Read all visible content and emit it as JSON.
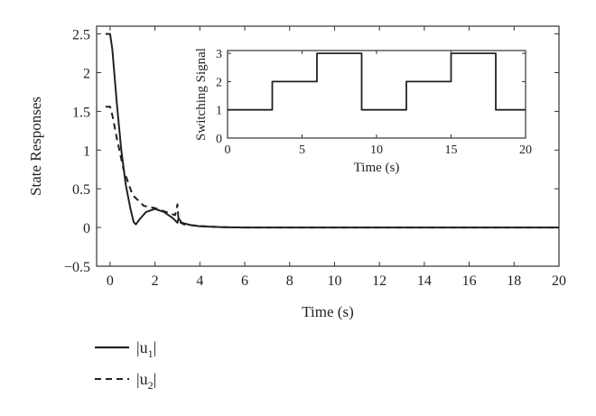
{
  "chart_data": [
    {
      "type": "line",
      "xlabel": "Time (s)",
      "ylabel": "State Responses",
      "xlim": [
        -0.6,
        20
      ],
      "ylim": [
        -0.5,
        2.6
      ],
      "xticks": [
        0,
        2,
        4,
        6,
        8,
        10,
        12,
        14,
        16,
        18,
        20
      ],
      "yticks": [
        -0.5,
        0,
        0.5,
        1,
        1.5,
        2,
        2.5
      ],
      "xtick_labels": [
        "0",
        "2",
        "4",
        "6",
        "8",
        "10",
        "12",
        "14",
        "16",
        "18",
        "20"
      ],
      "ytick_labels": [
        "−0.5",
        "0",
        "0.5",
        "1",
        "1.5",
        "2",
        "2.5"
      ],
      "legend_position": "below-left",
      "series": [
        {
          "name_parts": [
            "|u",
            "1",
            "|"
          ],
          "style": "solid",
          "x": [
            -0.2,
            0,
            0.1,
            0.3,
            0.5,
            0.7,
            0.9,
            1.05,
            1.15,
            1.3,
            1.6,
            2.0,
            2.4,
            2.8,
            3.0,
            3.05,
            3.2,
            3.6,
            4.0,
            5.0,
            6.0,
            8.0,
            20.0
          ],
          "y": [
            2.5,
            2.5,
            2.3,
            1.6,
            1.0,
            0.55,
            0.25,
            0.07,
            0.04,
            0.1,
            0.2,
            0.24,
            0.2,
            0.12,
            0.06,
            0.12,
            0.06,
            0.03,
            0.015,
            0.005,
            0.0,
            0.0,
            0.0
          ]
        },
        {
          "name_parts": [
            "|u",
            "2",
            "|"
          ],
          "style": "dashed",
          "x": [
            -0.2,
            0,
            0.1,
            0.3,
            0.6,
            1.0,
            1.5,
            2.0,
            2.5,
            2.9,
            3.0,
            3.05,
            3.15,
            3.3,
            3.6,
            4.0,
            5.0,
            6.0,
            8.0,
            20.0
          ],
          "y": [
            1.56,
            1.56,
            1.45,
            1.15,
            0.75,
            0.42,
            0.28,
            0.25,
            0.2,
            0.16,
            0.3,
            0.1,
            0.06,
            0.04,
            0.03,
            0.02,
            0.005,
            0.0,
            0.0,
            0.0
          ]
        }
      ]
    },
    {
      "type": "line",
      "xlabel": "Time (s)",
      "ylabel": "Switching Signal",
      "xlim": [
        0,
        20
      ],
      "ylim": [
        0,
        3.1
      ],
      "xticks": [
        0,
        5,
        10,
        15,
        20
      ],
      "yticks": [
        0,
        1,
        2,
        3
      ],
      "xtick_labels": [
        "0",
        "5",
        "10",
        "15",
        "20"
      ],
      "ytick_labels": [
        "0",
        "1",
        "2",
        "3"
      ],
      "series": [
        {
          "style": "step",
          "x": [
            0,
            3,
            3,
            6,
            6,
            9,
            9,
            12,
            12,
            15,
            15,
            18,
            18,
            20
          ],
          "y": [
            1,
            1,
            2,
            2,
            3,
            3,
            1,
            1,
            2,
            2,
            3,
            3,
            1,
            1
          ]
        }
      ]
    }
  ]
}
